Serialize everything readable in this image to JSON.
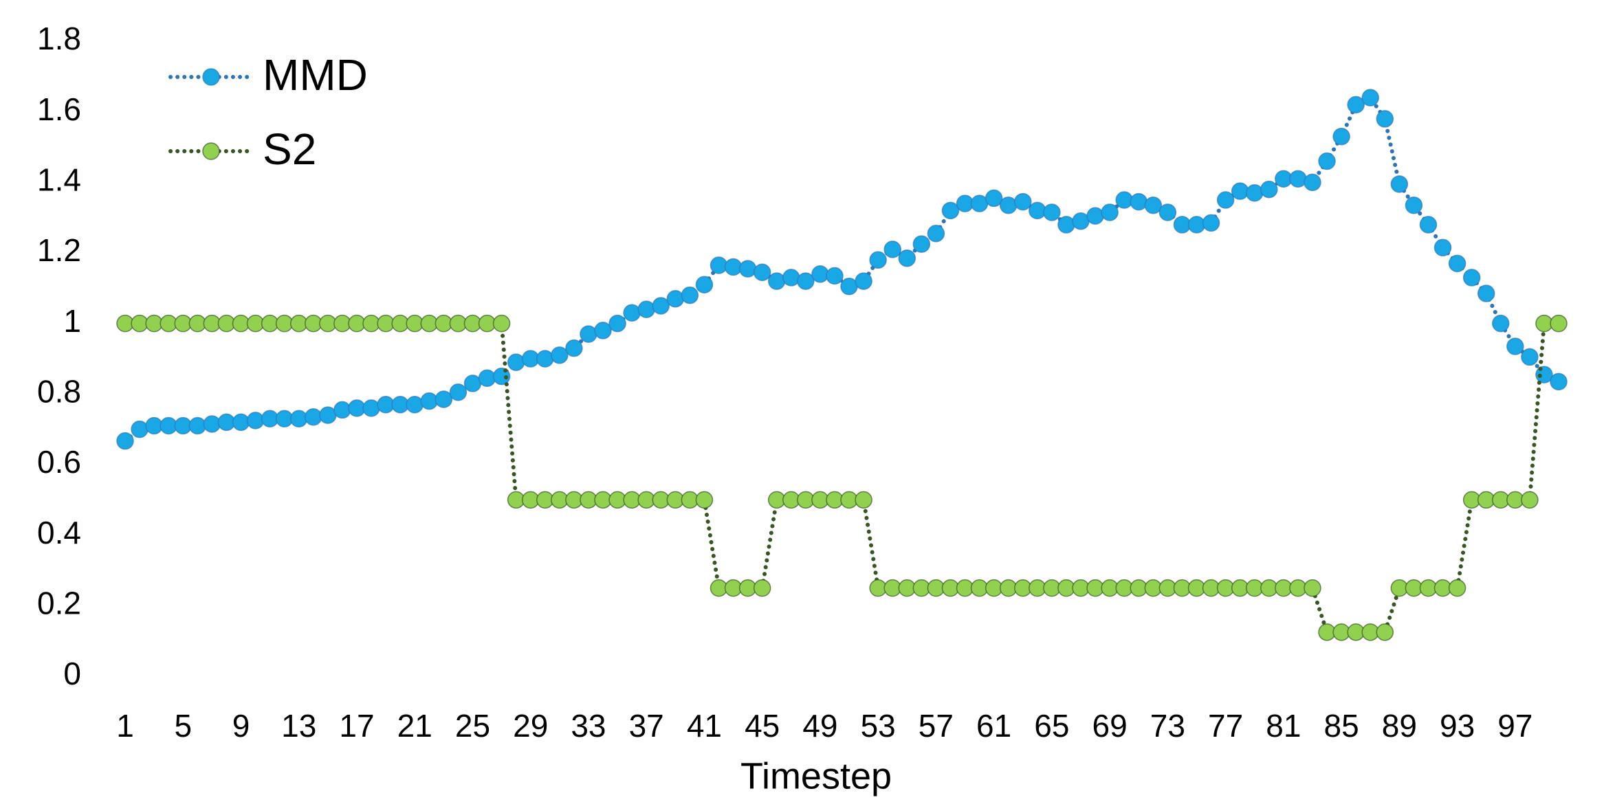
{
  "chart_data": {
    "type": "line",
    "x_label": "Timestep",
    "categories": [
      1,
      null,
      null,
      null,
      5,
      null,
      null,
      null,
      9,
      null,
      null,
      null,
      13,
      null,
      null,
      null,
      17,
      null,
      null,
      null,
      21,
      null,
      null,
      null,
      25,
      null,
      null,
      null,
      29,
      null,
      null,
      null,
      33,
      null,
      null,
      null,
      37,
      null,
      null,
      null,
      41,
      null,
      null,
      null,
      45,
      null,
      null,
      null,
      49,
      null,
      null,
      null,
      53,
      null,
      null,
      null,
      57,
      null,
      null,
      null,
      61,
      null,
      null,
      null,
      65,
      null,
      null,
      null,
      69,
      null,
      null,
      null,
      73,
      null,
      null,
      null,
      77,
      null,
      null,
      null,
      81,
      null,
      null,
      null,
      85,
      null,
      null,
      null,
      89,
      null,
      null,
      null,
      93,
      null,
      null,
      null,
      97,
      null,
      null,
      null
    ],
    "series": [
      {
        "name": "MMD",
        "color": "#1aa7e6",
        "line_color": "#2e75b6",
        "values": [
          0.667,
          0.7,
          0.71,
          0.71,
          0.71,
          0.71,
          0.715,
          0.72,
          0.72,
          0.725,
          0.73,
          0.73,
          0.73,
          0.735,
          0.74,
          0.755,
          0.76,
          0.76,
          0.77,
          0.77,
          0.77,
          0.78,
          0.785,
          0.805,
          0.83,
          0.845,
          0.85,
          0.89,
          0.9,
          0.9,
          0.91,
          0.93,
          0.97,
          0.98,
          1.0,
          1.03,
          1.04,
          1.05,
          1.07,
          1.08,
          1.11,
          1.165,
          1.16,
          1.155,
          1.145,
          1.12,
          1.13,
          1.12,
          1.14,
          1.135,
          1.105,
          1.12,
          1.18,
          1.21,
          1.185,
          1.225,
          1.255,
          1.32,
          1.34,
          1.34,
          1.355,
          1.335,
          1.345,
          1.32,
          1.315,
          1.28,
          1.29,
          1.305,
          1.315,
          1.35,
          1.345,
          1.335,
          1.315,
          1.28,
          1.28,
          1.285,
          1.35,
          1.375,
          1.37,
          1.38,
          1.41,
          1.41,
          1.4,
          1.46,
          1.53,
          1.62,
          1.64,
          1.58,
          1.395,
          1.335,
          1.28,
          1.215,
          1.17,
          1.13,
          1.085,
          1.0,
          0.935,
          0.905,
          0.855,
          0.835
        ]
      },
      {
        "name": "S2",
        "color": "#92d050",
        "line_color": "#375623",
        "values": [
          1,
          1,
          1,
          1,
          1,
          1,
          1,
          1,
          1,
          1,
          1,
          1,
          1,
          1,
          1,
          1,
          1,
          1,
          1,
          1,
          1,
          1,
          1,
          1,
          1,
          1,
          1,
          0.5,
          0.5,
          0.5,
          0.5,
          0.5,
          0.5,
          0.5,
          0.5,
          0.5,
          0.5,
          0.5,
          0.5,
          0.5,
          0.5,
          0.25,
          0.25,
          0.25,
          0.25,
          0.5,
          0.5,
          0.5,
          0.5,
          0.5,
          0.5,
          0.5,
          0.25,
          0.25,
          0.25,
          0.25,
          0.25,
          0.25,
          0.25,
          0.25,
          0.25,
          0.25,
          0.25,
          0.25,
          0.25,
          0.25,
          0.25,
          0.25,
          0.25,
          0.25,
          0.25,
          0.25,
          0.25,
          0.25,
          0.25,
          0.25,
          0.25,
          0.25,
          0.25,
          0.25,
          0.25,
          0.25,
          0.25,
          0.125,
          0.125,
          0.125,
          0.125,
          0.125,
          0.25,
          0.25,
          0.25,
          0.25,
          0.25,
          0.5,
          0.5,
          0.5,
          0.5,
          0.5,
          1,
          1
        ]
      }
    ],
    "ylim": [
      0,
      1.8
    ],
    "yticks": [
      0,
      0.2,
      0.4,
      0.6,
      0.8,
      1,
      1.2,
      1.4,
      1.6,
      1.8
    ],
    "grid": false,
    "legend": "upper left"
  }
}
